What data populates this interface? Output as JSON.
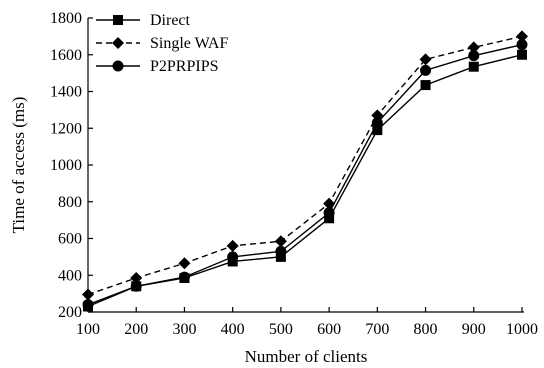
{
  "chart_data": {
    "type": "line",
    "title": "",
    "xlabel": "Number of clients",
    "ylabel": "Time of access (ms)",
    "categories": [
      "100",
      "200",
      "300",
      "400",
      "500",
      "600",
      "700",
      "800",
      "900",
      "1000"
    ],
    "ylim": [
      200,
      1800
    ],
    "yticks": [
      200,
      400,
      600,
      800,
      1000,
      1200,
      1400,
      1600,
      1800
    ],
    "grid": false,
    "legend_position": "top-left",
    "series": [
      {
        "name": "Direct",
        "marker": "square",
        "line_style": "solid",
        "color": "#000000",
        "values": [
          230,
          340,
          385,
          475,
          500,
          710,
          1190,
          1435,
          1535,
          1600
        ]
      },
      {
        "name": "Single WAF",
        "marker": "diamond",
        "line_style": "dashed",
        "color": "#000000",
        "values": [
          295,
          385,
          465,
          560,
          585,
          790,
          1270,
          1575,
          1640,
          1700
        ]
      },
      {
        "name": "P2PRPIPS",
        "marker": "circle",
        "line_style": "solid",
        "color": "#000000",
        "values": [
          240,
          340,
          390,
          500,
          530,
          740,
          1230,
          1515,
          1595,
          1655
        ]
      }
    ]
  }
}
